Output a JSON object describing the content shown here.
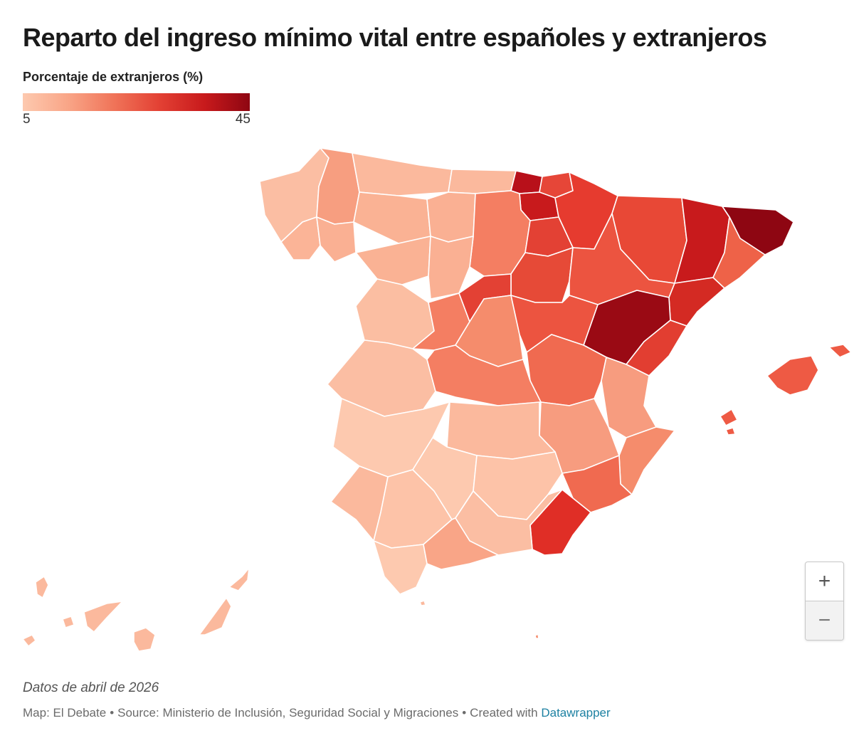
{
  "title": "Reparto del ingreso mínimo vital entre españoles y extranjeros",
  "legend": {
    "title": "Porcentaje de extranjeros (%)",
    "min_label": "5",
    "max_label": "45",
    "min_value": 5,
    "max_value": 45,
    "colors": [
      "#fdc9af",
      "#f9a587",
      "#f07459",
      "#e34134",
      "#c81a1c",
      "#8e0612"
    ]
  },
  "map": {
    "type": "choropleth",
    "region": "España (provincias)",
    "border_color": "#ffffff",
    "zoom_in_label": "+",
    "zoom_out_label": "−"
  },
  "notes": "Datos de abril de 2026",
  "footer": {
    "map_by": "Map: El Debate",
    "source": "Source: Ministerio de Inclusión, Seguridad Social y Migraciones",
    "created_prefix": "Created with",
    "created_link": "Datawrapper",
    "separator": "•"
  }
}
